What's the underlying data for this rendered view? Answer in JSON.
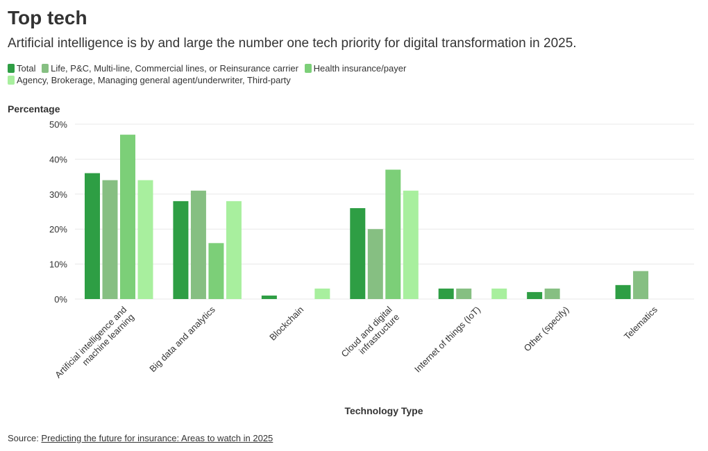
{
  "title": "Top tech",
  "subtitle": "Artificial intelligence is by and large the number one tech priority for digital transformation in 2025.",
  "source": {
    "prefix": "Source: ",
    "link_text": "Predicting the future for insurance: Areas to watch in 2025"
  },
  "colors": {
    "series": [
      "#2e9e44",
      "#86bf82",
      "#7ccf78",
      "#a8ef9e"
    ],
    "grid": "#e8e8e8",
    "text": "#333333"
  },
  "chart_data": {
    "type": "bar",
    "title": "Top tech",
    "xlabel": "Technology Type",
    "ylabel": "Percentage",
    "ylim": [
      0,
      50
    ],
    "yticks": [
      0,
      10,
      20,
      30,
      40,
      50
    ],
    "ytick_suffix": "%",
    "grid": true,
    "legend_position": "top-left",
    "categories": [
      "Artificial intelligence and machine learning",
      "Big data and analytics",
      "Blockchain",
      "Cloud and digital infrastructure",
      "Internet of things (IoT)",
      "Other (specify)",
      "Telematics"
    ],
    "category_lines": [
      [
        "Artificial intelligence and",
        "machine learning"
      ],
      [
        "Big data and analytics"
      ],
      [
        "Blockchain"
      ],
      [
        "Cloud and digital",
        "infrastructure"
      ],
      [
        "Internet of things (IoT)"
      ],
      [
        "Other (specify)"
      ],
      [
        "Telematics"
      ]
    ],
    "series": [
      {
        "name": "Total",
        "values": [
          36,
          28,
          1,
          26,
          3,
          2,
          4
        ]
      },
      {
        "name": "Life, P&C, Multi-line, Commercial lines, or Reinsurance carrier",
        "values": [
          34,
          31,
          0,
          20,
          3,
          3,
          8
        ]
      },
      {
        "name": "Health insurance/payer",
        "values": [
          47,
          16,
          0,
          37,
          0,
          0,
          0
        ]
      },
      {
        "name": "Agency, Brokerage, Managing general agent/underwriter, Third-party",
        "values": [
          34,
          28,
          3,
          31,
          3,
          0,
          0
        ]
      }
    ]
  }
}
